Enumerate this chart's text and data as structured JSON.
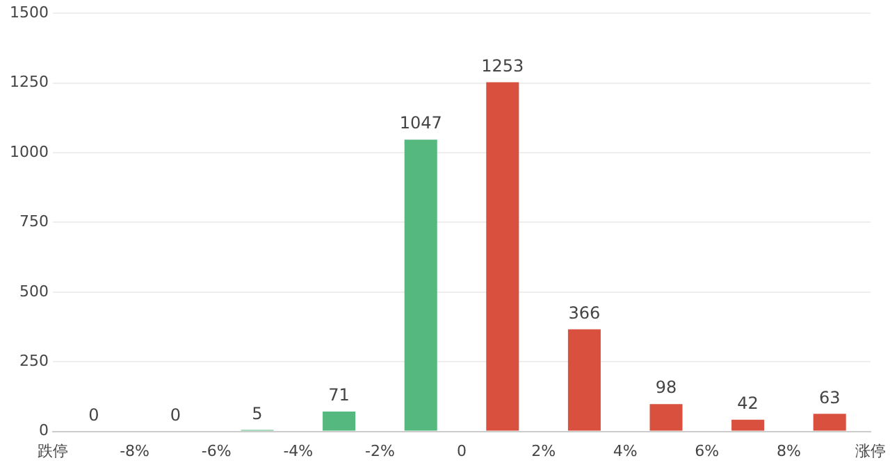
{
  "chart_data": {
    "type": "histogram",
    "bins": [
      -10,
      -8,
      -6,
      -4,
      -2,
      0,
      2,
      4,
      6,
      8,
      10
    ],
    "values": [
      0,
      0,
      5,
      71,
      1047,
      1253,
      366,
      98,
      42,
      63
    ],
    "colors": [
      "#55b87f",
      "#55b87f",
      "#55b87f",
      "#55b87f",
      "#55b87f",
      "#d9513e",
      "#d9513e",
      "#d9513e",
      "#d9513e",
      "#d9513e"
    ],
    "xlim": [
      -10,
      10
    ],
    "xticks": [
      {
        "value": -10,
        "label": "跌停"
      },
      {
        "value": -8,
        "label": "-8%"
      },
      {
        "value": -6,
        "label": "-6%"
      },
      {
        "value": -4,
        "label": "-4%"
      },
      {
        "value": -2,
        "label": "-2%"
      },
      0,
      {
        "value": 2,
        "label": "2%"
      },
      {
        "value": 4,
        "label": "4%"
      },
      {
        "value": 6,
        "label": "6%"
      },
      {
        "value": 8,
        "label": "8%"
      },
      {
        "value": 10,
        "label": "涨停"
      }
    ],
    "ylim": [
      0,
      1500
    ],
    "yticks": [
      0,
      250,
      500,
      750,
      1000,
      1250,
      1500
    ],
    "grid": "y",
    "data_labels": true,
    "legend": false
  }
}
